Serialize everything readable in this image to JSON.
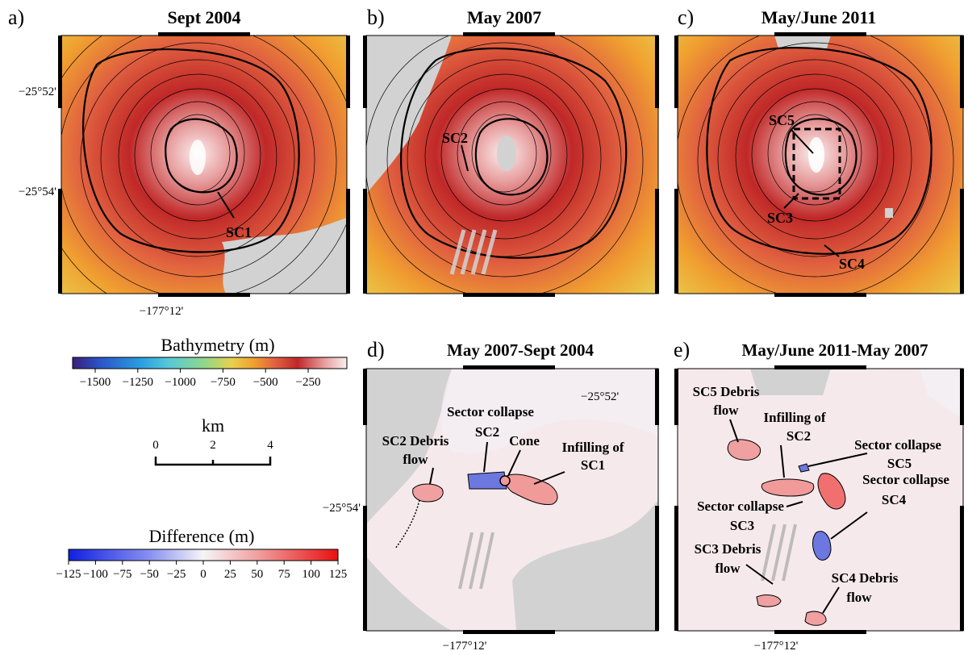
{
  "panels": {
    "a": {
      "letter": "a)",
      "title": "Sept 2004",
      "label_sc1": "SC1"
    },
    "b": {
      "letter": "b)",
      "title": "May 2007",
      "label_sc2": "SC2"
    },
    "c": {
      "letter": "c)",
      "title": "May/June 2011",
      "label_sc5": "SC5",
      "label_sc3": "SC3",
      "label_sc4": "SC4"
    },
    "d": {
      "letter": "d)",
      "title": "May 2007-Sept 2004",
      "sc2_debris_1": "SC2 Debris",
      "sc2_debris_2": "flow",
      "sector_collapse": "Sector collapse",
      "sc2": "SC2",
      "cone": "Cone",
      "infilling_1": "Infilling of",
      "infilling_2": "SC1"
    },
    "e": {
      "letter": "e)",
      "title": "May/June 2011-May 2007",
      "sc5_debris_1": "SC5 Debris",
      "sc5_debris_2": "flow",
      "infilling_1": "Infilling of",
      "infilling_2": "SC2",
      "sector_collapse_sc5_1": "Sector collapse",
      "sector_collapse_sc5_2": "SC5",
      "sector_collapse_sc4_1": "Sector collapse",
      "sector_collapse_sc4_2": "SC4",
      "sector_collapse_sc3_1": "Sector collapse",
      "sector_collapse_sc3_2": "SC3",
      "sc3_debris_1": "SC3 Debris",
      "sc3_debris_2": "flow",
      "sc4_debris_1": "SC4 Debris",
      "sc4_debris_2": "flow"
    }
  },
  "axes": {
    "lat_52": "−25°52'",
    "lat_54": "−25°54'",
    "lon": "−177°12'"
  },
  "bathymetry_legend": {
    "title": "Bathymetry (m)",
    "ticks": [
      "−1500",
      "−1250",
      "−1000",
      "−750",
      "−500",
      "−250"
    ]
  },
  "scale_bar": {
    "unit": "km",
    "ticks": [
      "0",
      "2",
      "4"
    ]
  },
  "difference_legend": {
    "title": "Difference (m)",
    "ticks": [
      "−125",
      "−100",
      "−75",
      "−50",
      "−25",
      "0",
      "25",
      "50",
      "75",
      "100",
      "125"
    ]
  },
  "colors": {
    "bathy_ramp": [
      "#3a1f7c",
      "#2a55c8",
      "#2a9fe0",
      "#58c8d8",
      "#8fd88a",
      "#e8d050",
      "#f0a030",
      "#e06040",
      "#c02828",
      "#e8a0a0",
      "#fbeeee"
    ],
    "diff_ramp": [
      "#1020e0",
      "#8890f0",
      "#f6f4f6",
      "#f0a0a0",
      "#e81010"
    ],
    "nodata": "#d2d2d2",
    "contour": "#000000"
  }
}
